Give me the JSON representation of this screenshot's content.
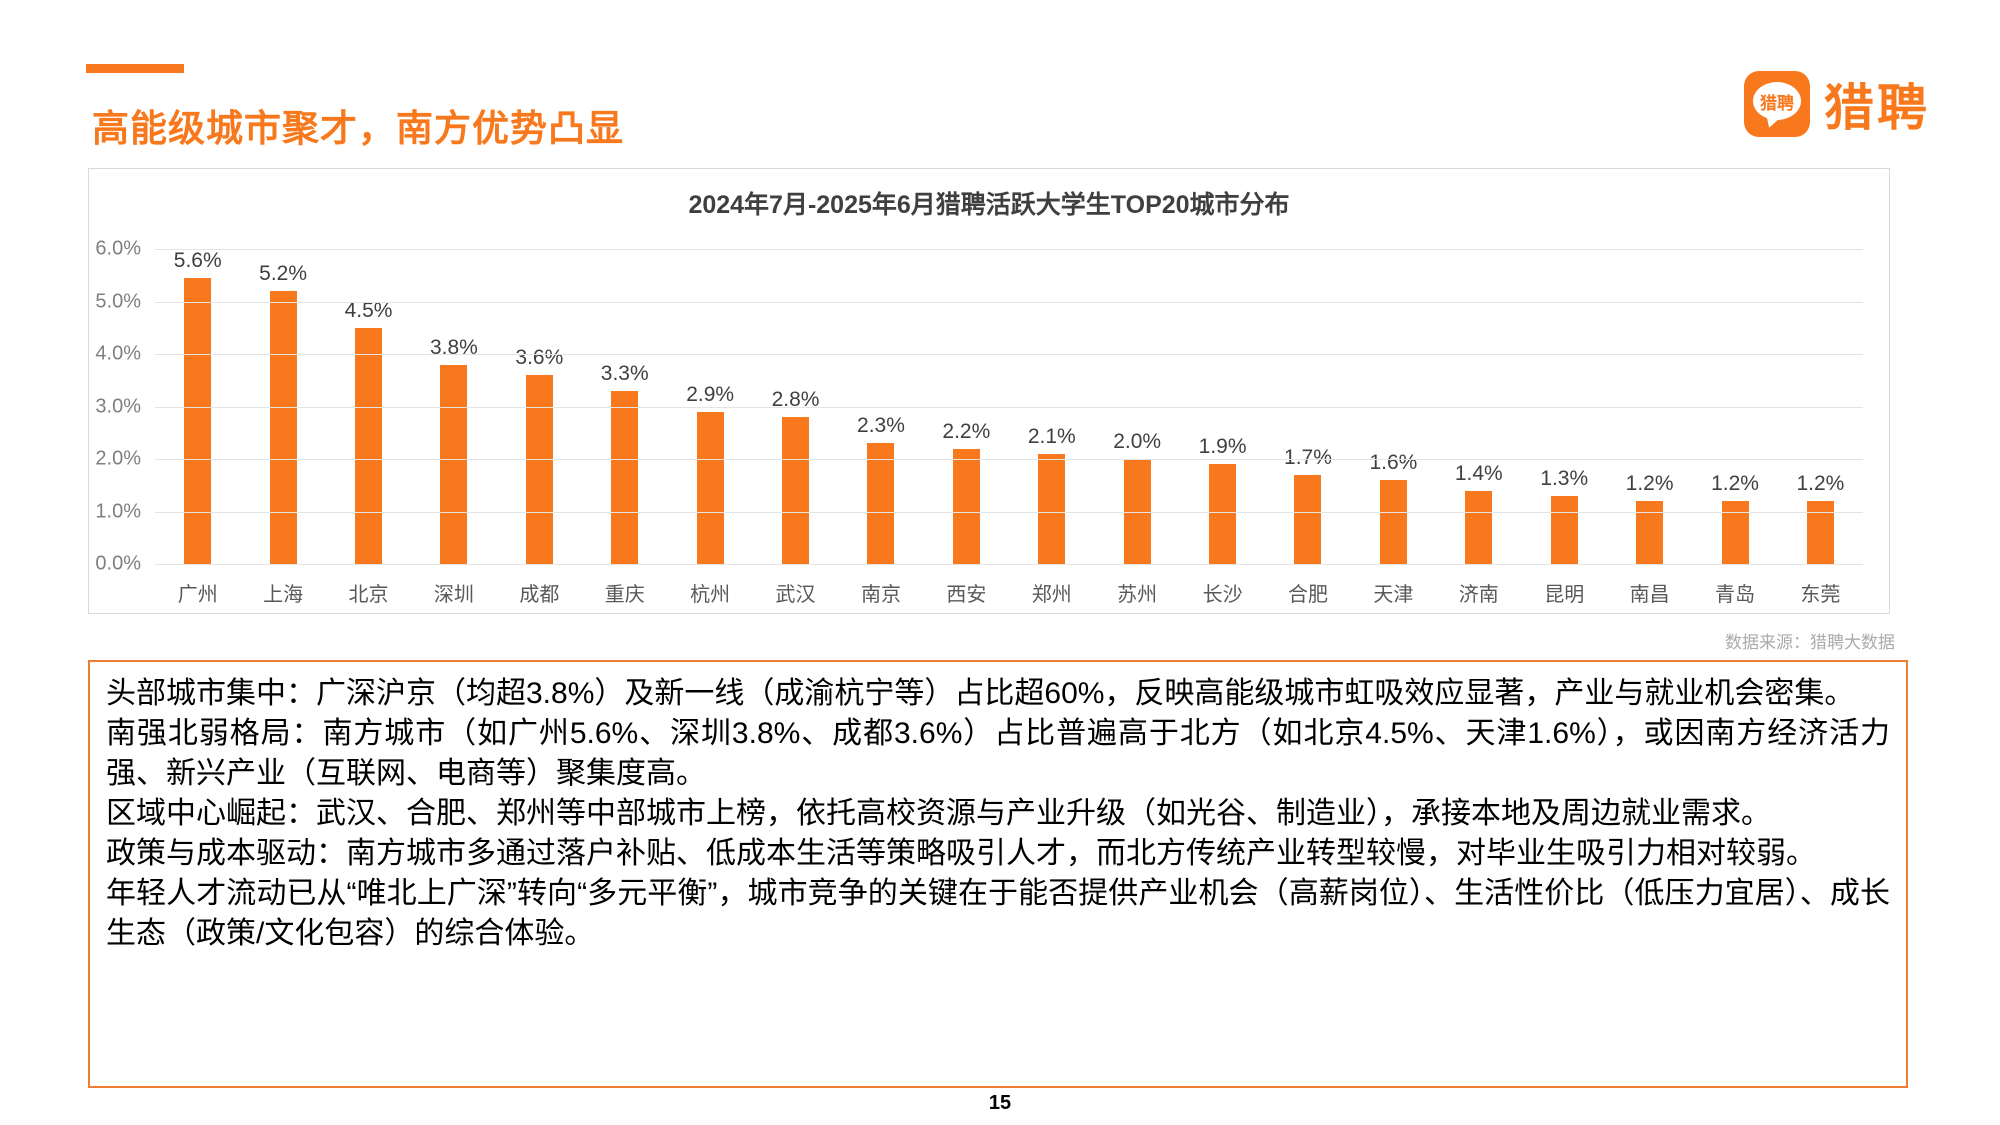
{
  "header": {
    "title": "高能级城市聚才，南方优势凸显",
    "accent_color": "#F8791D"
  },
  "logo": {
    "icon_text": "猎聘",
    "wordmark": "猎聘",
    "brand_color": "#F8791D"
  },
  "chart": {
    "source_note": "数据来源：猎聘大数据"
  },
  "chart_data": {
    "type": "bar",
    "title": "2024年7月-2025年6月猎聘活跃大学生TOP20城市分布",
    "categories": [
      "广州",
      "上海",
      "北京",
      "深圳",
      "成都",
      "重庆",
      "杭州",
      "武汉",
      "南京",
      "西安",
      "郑州",
      "苏州",
      "长沙",
      "合肥",
      "天津",
      "济南",
      "昆明",
      "南昌",
      "青岛",
      "东莞"
    ],
    "values": [
      5.6,
      5.2,
      4.5,
      3.8,
      3.6,
      3.3,
      2.9,
      2.8,
      2.3,
      2.2,
      2.1,
      2.0,
      1.9,
      1.7,
      1.6,
      1.4,
      1.3,
      1.2,
      1.2,
      1.2
    ],
    "value_labels": [
      "5.6%",
      "5.2%",
      "4.5%",
      "3.8%",
      "3.6%",
      "3.3%",
      "2.9%",
      "2.8%",
      "2.3%",
      "2.2%",
      "2.1%",
      "2.0%",
      "1.9%",
      "1.7%",
      "1.6%",
      "1.4%",
      "1.3%",
      "1.2%",
      "1.2%",
      "1.2%"
    ],
    "xlabel": "",
    "ylabel": "",
    "ylim": [
      0,
      6
    ],
    "ytick_labels": [
      "6.0%",
      "5.0%",
      "4.0%",
      "3.0%",
      "2.0%",
      "1.0%",
      "0.0%"
    ],
    "bar_color": "#F8791D",
    "grid": true,
    "legend": "none"
  },
  "analysis": {
    "paragraphs": [
      "头部城市集中：广深沪京（均超3.8%）及新一线（成渝杭宁等）占比超60%，反映高能级城市虹吸效应显著，产业与就业机会密集。",
      "南强北弱格局：南方城市（如广州5.6%、深圳3.8%、成都3.6%）占比普遍高于北方（如北京4.5%、天津1.6%），或因南方经济活力强、新兴产业（互联网、电商等）聚集度高。",
      "区域中心崛起：武汉、合肥、郑州等中部城市上榜，依托高校资源与产业升级（如光谷、制造业），承接本地及周边就业需求。",
      "政策与成本驱动：南方城市多通过落户补贴、低成本生活等策略吸引人才，而北方传统产业转型较慢，对毕业生吸引力相对较弱。",
      "年轻人才流动已从“唯北上广深”转向“多元平衡”，城市竞争的关键在于能否提供产业机会（高薪岗位）、生活性价比（低压力宜居）、成长生态（政策/文化包容）的综合体验。"
    ]
  },
  "footer": {
    "page_number": "15"
  }
}
